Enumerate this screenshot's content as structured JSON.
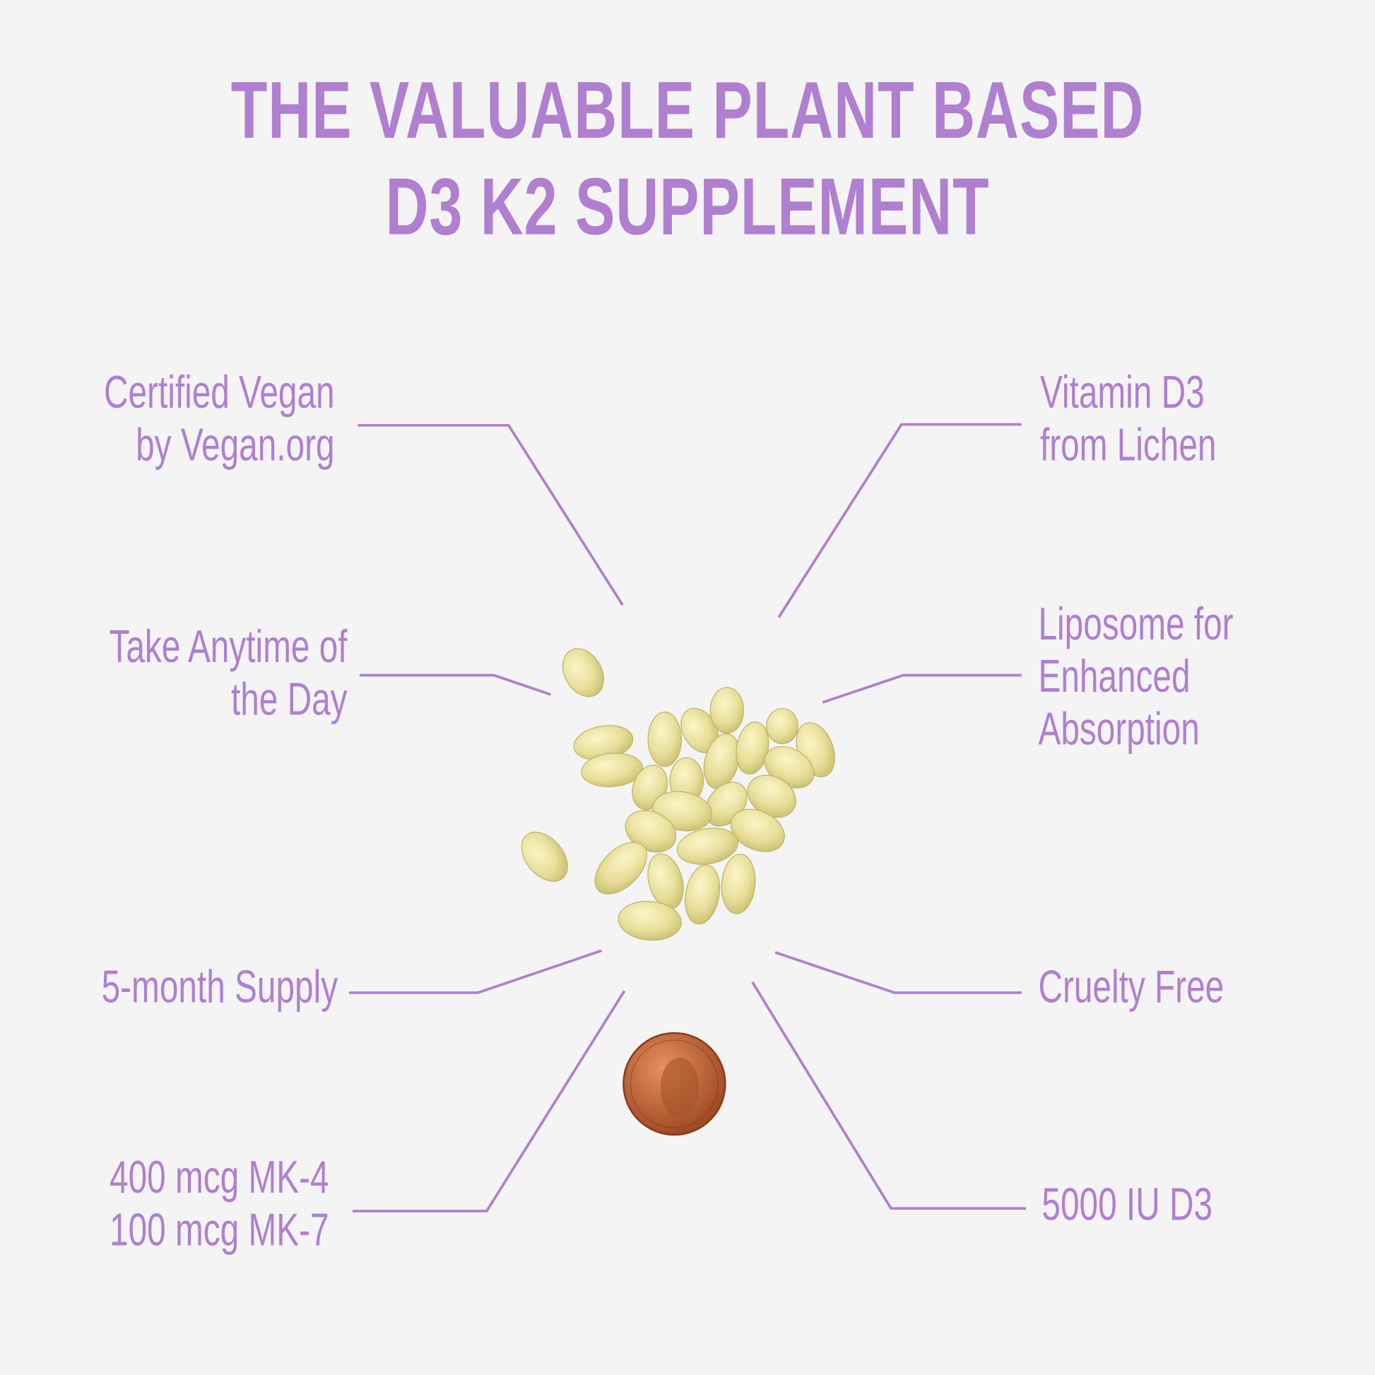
{
  "title": {
    "line1": "THE VALUABLE PLANT BASED",
    "line2": "D3 K2 SUPPLEMENT"
  },
  "features": {
    "certified_vegan": [
      "Certified Vegan",
      "by Vegan.org"
    ],
    "vitamin_d3": [
      "Vitamin D3",
      "from Lichen"
    ],
    "anytime": [
      "Take Anytime of",
      "the Day"
    ],
    "liposome": [
      "Liposome for",
      "Enhanced",
      "Absorption"
    ],
    "supply": [
      "5-month Supply"
    ],
    "cruelty_free": [
      "Cruelty Free"
    ],
    "mk": [
      "400 mcg MK-4",
      "100 mcg MK-7"
    ],
    "iu": [
      "5000 IU D3"
    ]
  },
  "colors": {
    "accent": "#b07fd0",
    "background": "#f4f4f4",
    "softgel": "#e8df9a",
    "penny": "#c0643a"
  }
}
